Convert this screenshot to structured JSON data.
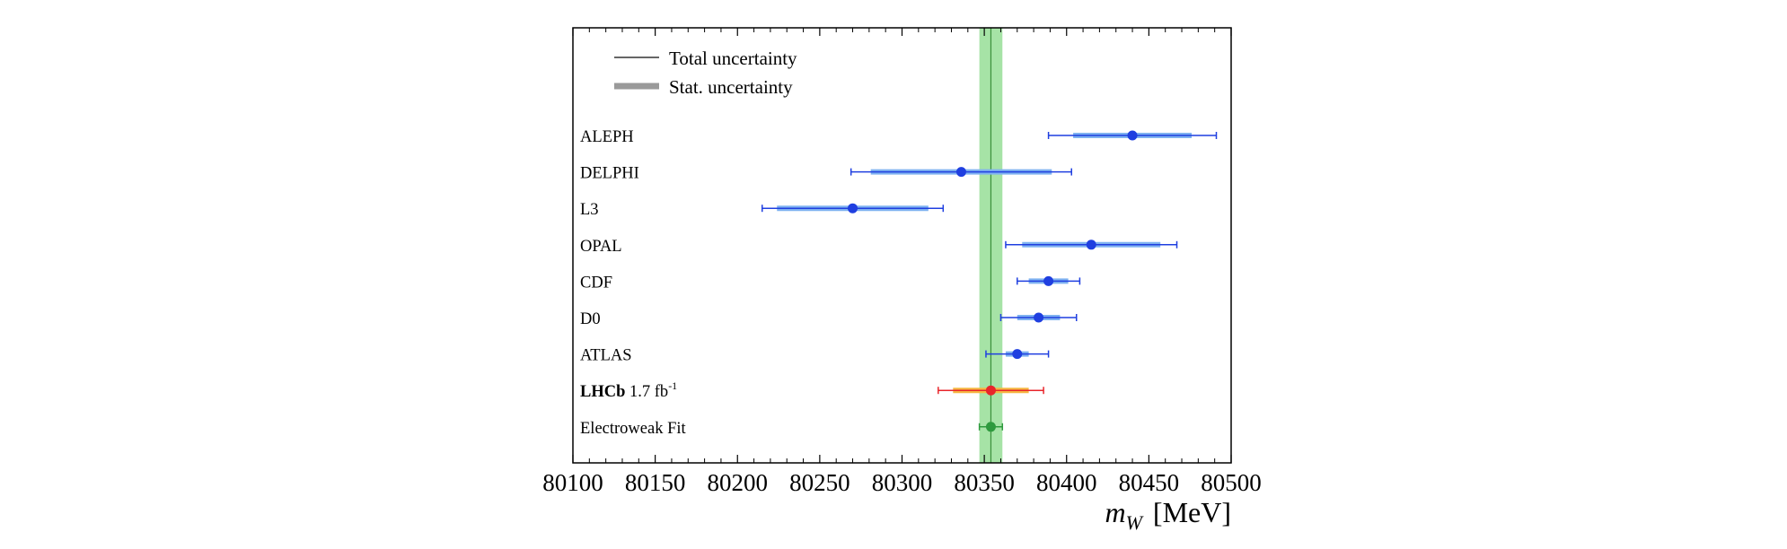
{
  "chart_data": {
    "type": "scatter",
    "xlabel_var": "m",
    "xlabel_sub": "W",
    "xlabel_unit": "[MeV]",
    "xlim": [
      80100,
      80500
    ],
    "x_ticks": [
      80100,
      80150,
      80200,
      80250,
      80300,
      80350,
      80400,
      80450,
      80500
    ],
    "legend": {
      "placement": "top-left",
      "total_label": "Total uncertainty",
      "stat_label": "Stat. uncertainty"
    },
    "band": {
      "center": 80354,
      "low": 80347,
      "high": 80361,
      "color": "#a6e3a6"
    },
    "measurements": [
      {
        "label": "ALEPH",
        "value": 80440,
        "total": 51,
        "stat": 36,
        "color": "#1f3fe0",
        "stat_color": "#7fb2f0"
      },
      {
        "label": "DELPHI",
        "value": 80336,
        "total": 67,
        "stat": 55,
        "color": "#1f3fe0",
        "stat_color": "#7fb2f0"
      },
      {
        "label": "L3",
        "value": 80270,
        "total": 55,
        "stat": 46,
        "color": "#1f3fe0",
        "stat_color": "#7fb2f0"
      },
      {
        "label": "OPAL",
        "value": 80415,
        "total": 52,
        "stat": 42,
        "color": "#1f3fe0",
        "stat_color": "#7fb2f0"
      },
      {
        "label": "CDF",
        "value": 80389,
        "total": 19,
        "stat": 12,
        "color": "#1f3fe0",
        "stat_color": "#7fb2f0"
      },
      {
        "label": "D0",
        "value": 80383,
        "total": 23,
        "stat": 13,
        "color": "#1f3fe0",
        "stat_color": "#7fb2f0"
      },
      {
        "label": "ATLAS",
        "value": 80370,
        "total": 19,
        "stat": 7,
        "color": "#1f3fe0",
        "stat_color": "#7fb2f0"
      },
      {
        "label_bold": "LHCb",
        "label_rest": " 1.7 fb",
        "label_sup": "-1",
        "value": 80354,
        "total": 32,
        "stat": 23,
        "color": "#e8252b",
        "stat_color": "#f5b642"
      },
      {
        "label": "Electroweak Fit",
        "value": 80354,
        "total": 7,
        "stat": 0,
        "color": "#2e9a3e",
        "stat_color": "#2e9a3e"
      }
    ]
  }
}
